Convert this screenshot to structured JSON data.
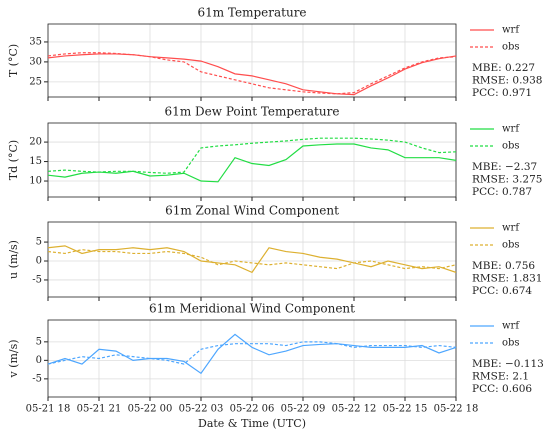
{
  "chart_data": [
    {
      "type": "line",
      "title": "61m Temperature",
      "ylabel": "T (°C)",
      "x": [
        0,
        1,
        2,
        3,
        4,
        5,
        6,
        7,
        8,
        9,
        10,
        11,
        12,
        13,
        14,
        15,
        16,
        17,
        18,
        19,
        20,
        21,
        22,
        23,
        24
      ],
      "series": [
        {
          "name": "wrf",
          "color": "#ff4d4d",
          "linestyle": "solid",
          "values": [
            31,
            31.5,
            31.8,
            32,
            32,
            31.8,
            31.3,
            31,
            30.7,
            30.2,
            28.8,
            27,
            26.5,
            25.5,
            24.5,
            23,
            22.5,
            22,
            21.8,
            24,
            26,
            28.2,
            29.8,
            30.8,
            31.5
          ]
        },
        {
          "name": "obs",
          "color": "#ff4d4d",
          "linestyle": "dashed",
          "values": [
            31.5,
            32,
            32.3,
            32.3,
            32.1,
            31.8,
            31.3,
            30.5,
            30,
            27.5,
            26.5,
            25.5,
            24.5,
            23.5,
            23,
            22.5,
            22.2,
            22,
            22.3,
            24.5,
            26.5,
            28.5,
            30,
            31,
            31.3
          ]
        }
      ],
      "annotations": [
        "MBE:  0.227",
        "RMSE: 0.938",
        "PCC: 0.971"
      ],
      "xlim": [
        0,
        24
      ],
      "xticks": [
        0,
        3,
        6,
        9,
        12,
        15,
        18,
        21,
        24
      ],
      "ylim": [
        21.2,
        39.5
      ],
      "yticks": [
        25,
        30,
        35
      ],
      "grid": true
    },
    {
      "type": "line",
      "title": "61m Dew Point Temperature",
      "ylabel": "Td (°C)",
      "x": [
        0,
        1,
        2,
        3,
        4,
        5,
        6,
        7,
        8,
        9,
        10,
        11,
        12,
        13,
        14,
        15,
        16,
        17,
        18,
        19,
        20,
        21,
        22,
        23,
        24
      ],
      "series": [
        {
          "name": "wrf",
          "color": "#22dd44",
          "linestyle": "solid",
          "values": [
            11.5,
            11,
            12,
            12.3,
            12,
            12.5,
            11.3,
            11.5,
            12,
            10,
            9.8,
            16,
            14.5,
            14,
            15.5,
            19,
            19.3,
            19.5,
            19.5,
            18.5,
            18,
            16,
            16,
            16,
            15.3
          ]
        },
        {
          "name": "obs",
          "color": "#22dd44",
          "linestyle": "dashed",
          "values": [
            12.5,
            12.8,
            12.5,
            12.3,
            12.5,
            12.5,
            12.2,
            12,
            12.3,
            18.5,
            19,
            19.3,
            19.7,
            20,
            20.3,
            20.7,
            21,
            21,
            21,
            20.8,
            20.5,
            20,
            18.5,
            17.3,
            17.5
          ]
        }
      ],
      "annotations": [
        "MBE: −2.37",
        "RMSE: 3.275",
        "PCC: 0.787"
      ],
      "xlim": [
        0,
        24
      ],
      "xticks": [
        0,
        3,
        6,
        9,
        12,
        15,
        18,
        21,
        24
      ],
      "ylim": [
        5.9,
        24.9
      ],
      "yticks": [
        10,
        15,
        20
      ],
      "grid": true
    },
    {
      "type": "line",
      "title": "61m Zonal Wind Component",
      "ylabel": "u (m/s)",
      "x": [
        0,
        1,
        2,
        3,
        4,
        5,
        6,
        7,
        8,
        9,
        10,
        11,
        12,
        13,
        14,
        15,
        16,
        17,
        18,
        19,
        20,
        21,
        22,
        23,
        24
      ],
      "series": [
        {
          "name": "wrf",
          "color": "#ddb030",
          "linestyle": "solid",
          "values": [
            3.5,
            4,
            2,
            3,
            3,
            3.5,
            3,
            3.5,
            2.5,
            0,
            -0.5,
            -1,
            -3,
            3.5,
            2.5,
            2,
            1,
            0.5,
            -0.5,
            -1.5,
            0,
            -1,
            -2,
            -1.5,
            -3
          ]
        },
        {
          "name": "obs",
          "color": "#ddb030",
          "linestyle": "dashed",
          "values": [
            2.5,
            2,
            3,
            2.5,
            2.5,
            2,
            2,
            2.5,
            2,
            1,
            -1,
            0,
            -0.5,
            -1,
            -0.5,
            -1,
            -1.5,
            -2,
            -0.5,
            0,
            -1,
            -2,
            -1.5,
            -2,
            -1
          ]
        }
      ],
      "annotations": [
        "MBE:  0.756",
        "RMSE: 1.831",
        "PCC: 0.674"
      ],
      "xlim": [
        0,
        24
      ],
      "xticks": [
        0,
        3,
        6,
        9,
        12,
        15,
        18,
        21,
        24
      ],
      "ylim": [
        -9.5,
        10.3
      ],
      "yticks": [
        -5,
        0,
        5
      ],
      "grid": true
    },
    {
      "type": "line",
      "title": "61m Meridional Wind Component",
      "ylabel": "v (m/s)",
      "xlabel": "Date & Time (UTC)",
      "x": [
        0,
        1,
        2,
        3,
        4,
        5,
        6,
        7,
        8,
        9,
        10,
        11,
        12,
        13,
        14,
        15,
        16,
        17,
        18,
        19,
        20,
        21,
        22,
        23,
        24
      ],
      "series": [
        {
          "name": "wrf",
          "color": "#4da6ff",
          "linestyle": "solid",
          "values": [
            -1,
            0.5,
            -1,
            3,
            2.5,
            0,
            0.5,
            0.5,
            -0.3,
            -3.5,
            3,
            7,
            3.5,
            1.5,
            2.5,
            4,
            4.3,
            4.5,
            4,
            3.5,
            3.5,
            3.5,
            4,
            2,
            3.5
          ]
        },
        {
          "name": "obs",
          "color": "#4da6ff",
          "linestyle": "dashed",
          "values": [
            -1,
            0,
            1,
            0.5,
            1.5,
            1,
            0.5,
            0,
            -1,
            3,
            4,
            4.5,
            4.5,
            4.5,
            4,
            5,
            5,
            4.5,
            3.5,
            4,
            4,
            4,
            3.5,
            4,
            3.5
          ]
        }
      ],
      "annotations": [
        "MBE: −0.113",
        "RMSE: 2.1",
        "PCC: 0.606"
      ],
      "xlim": [
        0,
        24
      ],
      "xticks": [
        {
          "value": 0,
          "label": "05-21 18"
        },
        {
          "value": 3,
          "label": "05-21 21"
        },
        {
          "value": 6,
          "label": "05-22 00"
        },
        {
          "value": 9,
          "label": "05-22 03"
        },
        {
          "value": 12,
          "label": "05-22 06"
        },
        {
          "value": 15,
          "label": "05-22 09"
        },
        {
          "value": 18,
          "label": "05-22 12"
        },
        {
          "value": 21,
          "label": "05-22 15"
        },
        {
          "value": 24,
          "label": "05-22 18"
        }
      ],
      "ylim": [
        -9.9,
        10.9
      ],
      "yticks": [
        -5,
        0,
        5
      ],
      "grid": true
    }
  ]
}
